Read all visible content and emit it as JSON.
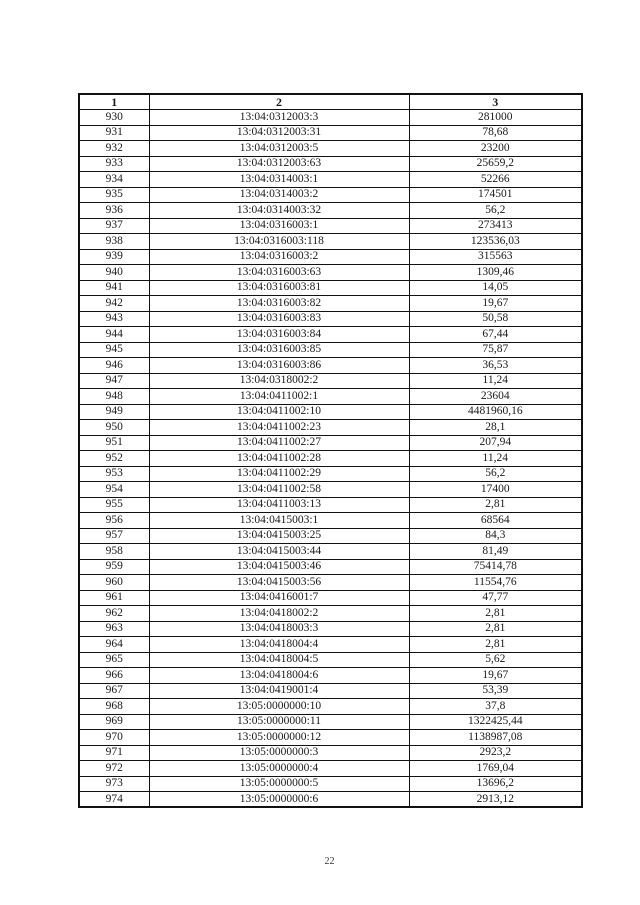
{
  "page": {
    "number": "22"
  },
  "table": {
    "headers": [
      "1",
      "2",
      "3"
    ],
    "rows": [
      [
        "930",
        "13:04:0312003:3",
        "281000"
      ],
      [
        "931",
        "13:04:0312003:31",
        "78,68"
      ],
      [
        "932",
        "13:04:0312003:5",
        "23200"
      ],
      [
        "933",
        "13:04:0312003:63",
        "25659,2"
      ],
      [
        "934",
        "13:04:0314003:1",
        "52266"
      ],
      [
        "935",
        "13:04:0314003:2",
        "174501"
      ],
      [
        "936",
        "13:04:0314003:32",
        "56,2"
      ],
      [
        "937",
        "13:04:0316003:1",
        "273413"
      ],
      [
        "938",
        "13:04:0316003:118",
        "123536,03"
      ],
      [
        "939",
        "13:04:0316003:2",
        "315563"
      ],
      [
        "940",
        "13:04:0316003:63",
        "1309,46"
      ],
      [
        "941",
        "13:04:0316003:81",
        "14,05"
      ],
      [
        "942",
        "13:04:0316003:82",
        "19,67"
      ],
      [
        "943",
        "13:04:0316003:83",
        "50,58"
      ],
      [
        "944",
        "13:04:0316003:84",
        "67,44"
      ],
      [
        "945",
        "13:04:0316003:85",
        "75,87"
      ],
      [
        "946",
        "13:04:0316003:86",
        "36,53"
      ],
      [
        "947",
        "13:04:0318002:2",
        "11,24"
      ],
      [
        "948",
        "13:04:0411002:1",
        "23604"
      ],
      [
        "949",
        "13:04:0411002:10",
        "4481960,16"
      ],
      [
        "950",
        "13:04:0411002:23",
        "28,1"
      ],
      [
        "951",
        "13:04:0411002:27",
        "207,94"
      ],
      [
        "952",
        "13:04:0411002:28",
        "11,24"
      ],
      [
        "953",
        "13:04:0411002:29",
        "56,2"
      ],
      [
        "954",
        "13:04:0411002:58",
        "17400"
      ],
      [
        "955",
        "13:04:0411003:13",
        "2,81"
      ],
      [
        "956",
        "13:04:0415003:1",
        "68564"
      ],
      [
        "957",
        "13:04:0415003:25",
        "84,3"
      ],
      [
        "958",
        "13:04:0415003:44",
        "81,49"
      ],
      [
        "959",
        "13:04:0415003:46",
        "75414,78"
      ],
      [
        "960",
        "13:04:0415003:56",
        "11554,76"
      ],
      [
        "961",
        "13:04:0416001:7",
        "47,77"
      ],
      [
        "962",
        "13:04:0418002:2",
        "2,81"
      ],
      [
        "963",
        "13:04:0418003:3",
        "2,81"
      ],
      [
        "964",
        "13:04:0418004:4",
        "2,81"
      ],
      [
        "965",
        "13:04:0418004:5",
        "5,62"
      ],
      [
        "966",
        "13:04:0418004:6",
        "19,67"
      ],
      [
        "967",
        "13:04:0419001:4",
        "53,39"
      ],
      [
        "968",
        "13:05:0000000:10",
        "37,8"
      ],
      [
        "969",
        "13:05:0000000:11",
        "1322425,44"
      ],
      [
        "970",
        "13:05:0000000:12",
        "1138987,08"
      ],
      [
        "971",
        "13:05:0000000:3",
        "2923,2"
      ],
      [
        "972",
        "13:05:0000000:4",
        "1769,04"
      ],
      [
        "973",
        "13:05:0000000:5",
        "13696,2"
      ],
      [
        "974",
        "13:05:0000000:6",
        "2913,12"
      ]
    ]
  }
}
